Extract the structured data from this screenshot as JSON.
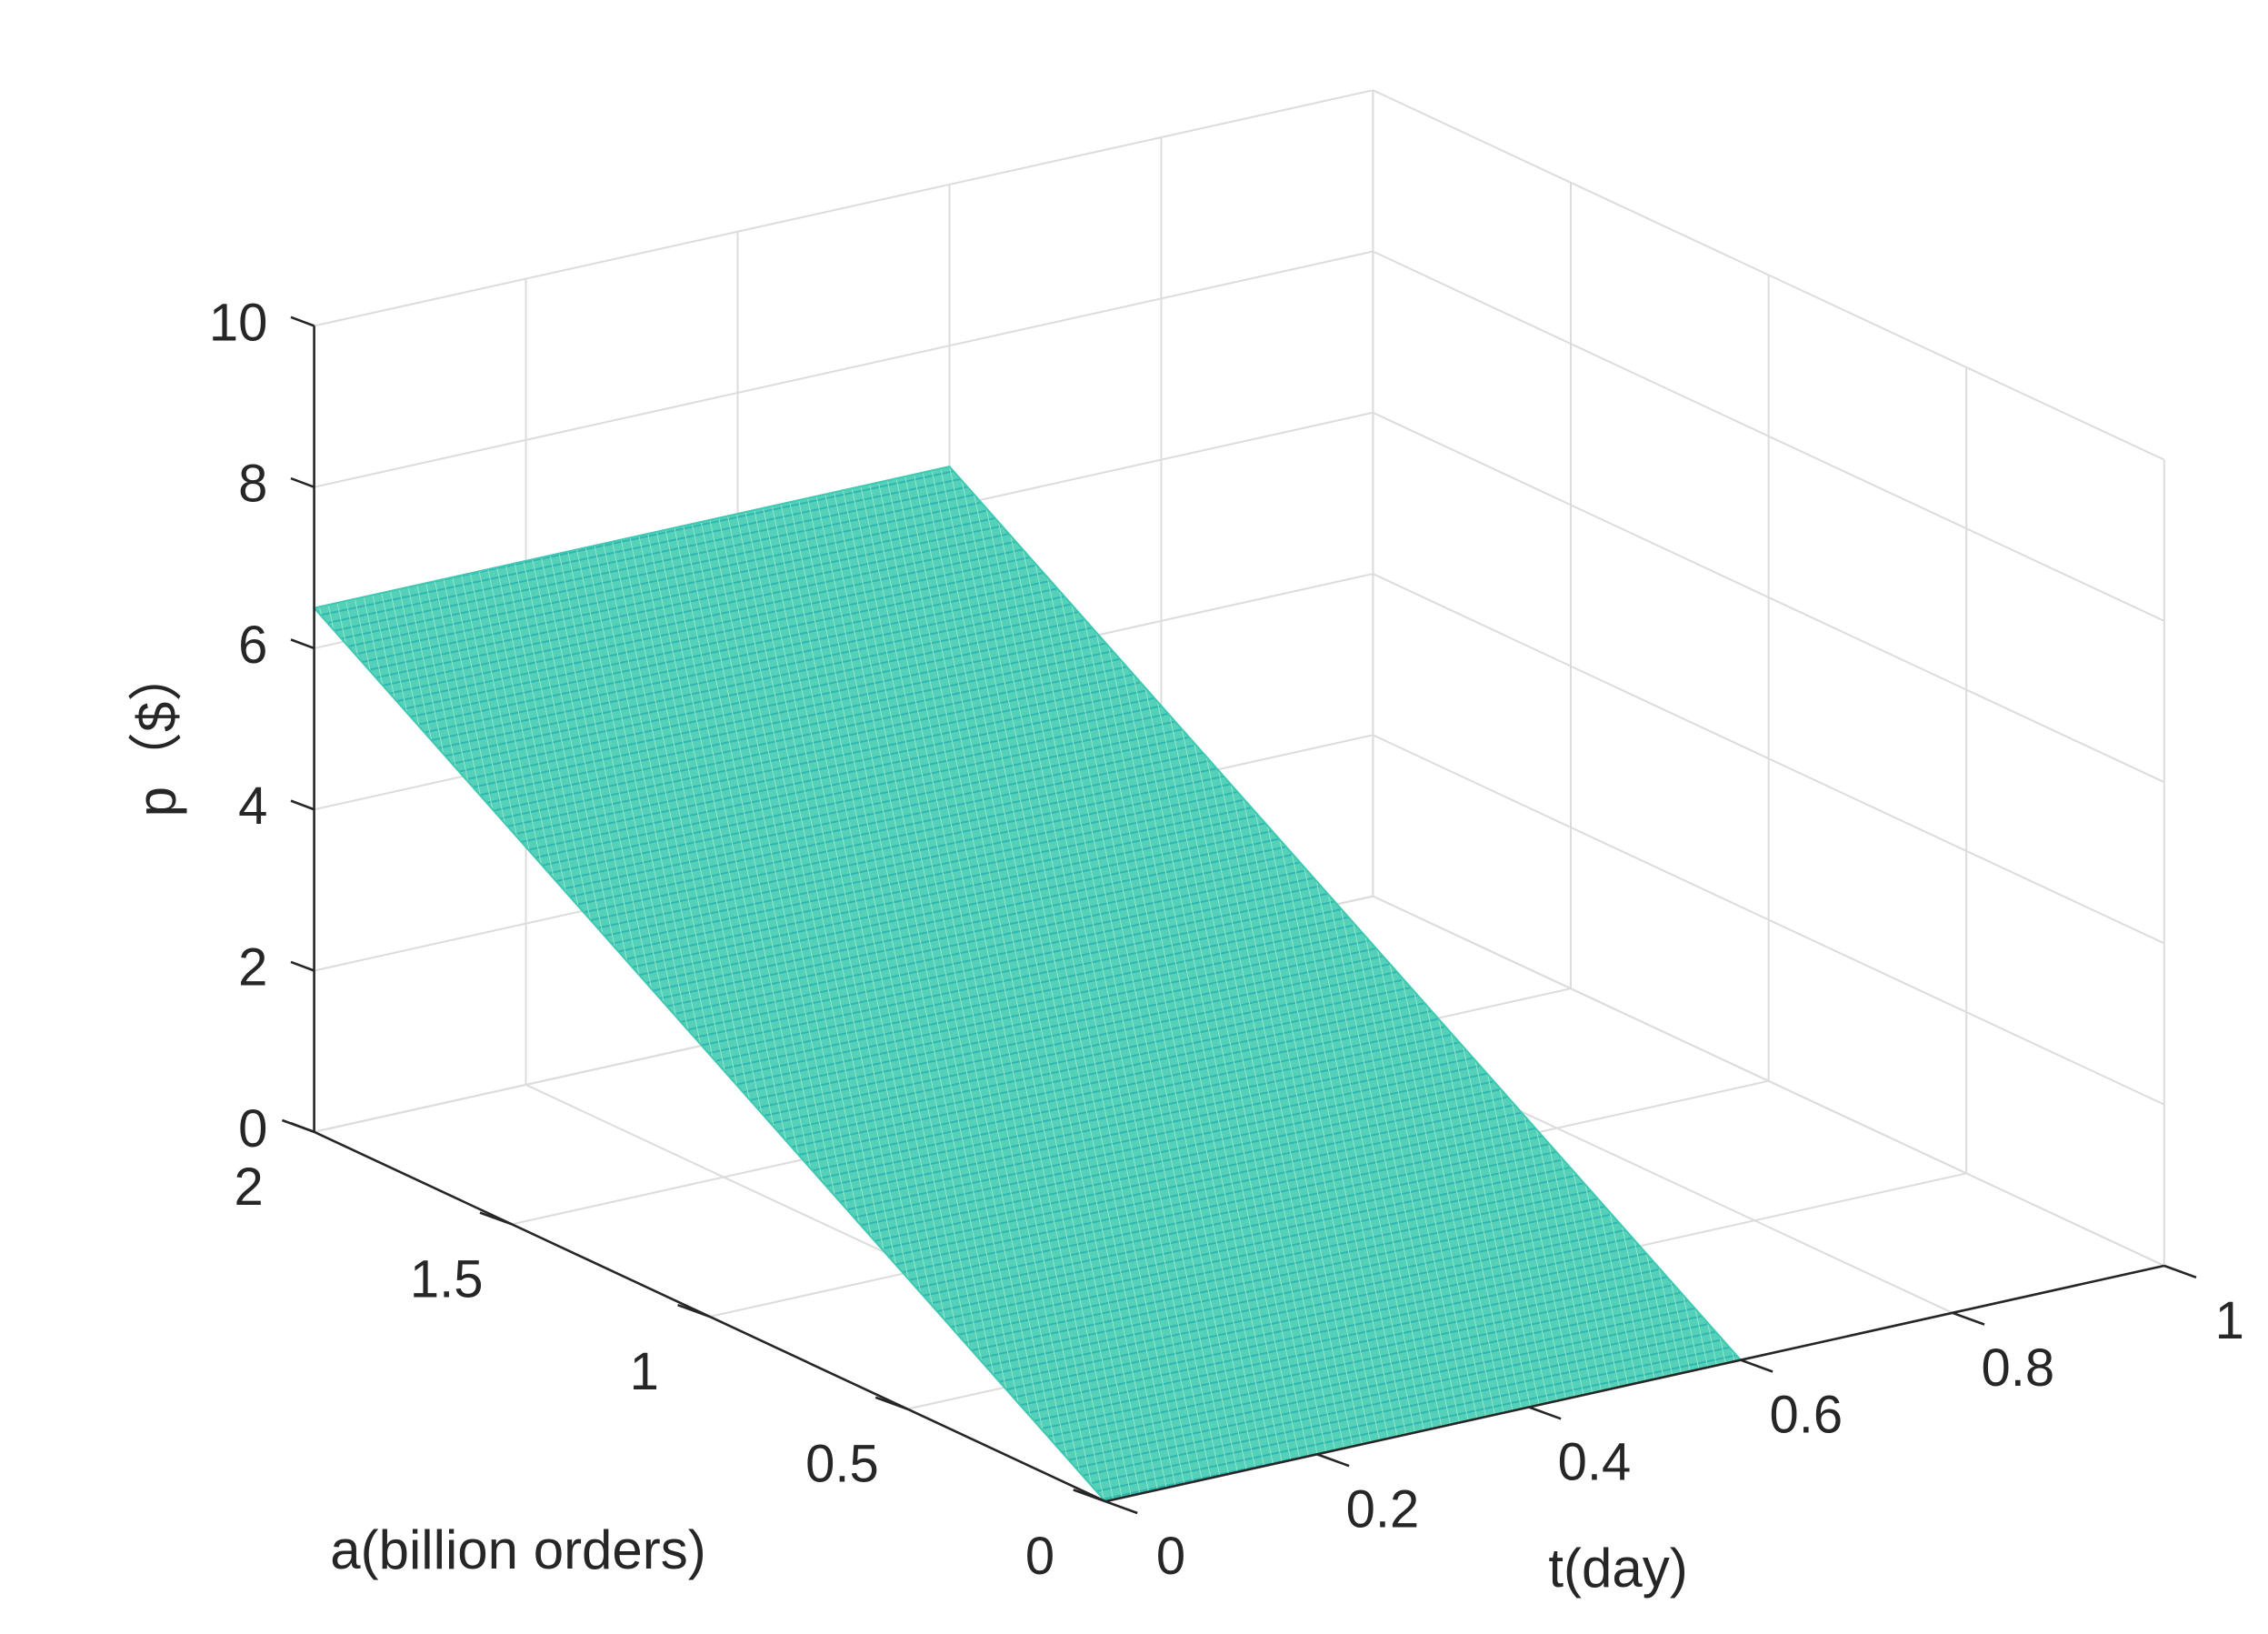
{
  "chart_data": {
    "type": "surface",
    "title": "",
    "xlabel": "t(day)",
    "ylabel": "a(billion orders)",
    "zlabel": "p（$）",
    "xlim": [
      0,
      1
    ],
    "ylim": [
      0,
      2
    ],
    "zlim": [
      0,
      10
    ],
    "xticks": [
      0,
      0.2,
      0.4,
      0.6,
      0.8,
      1
    ],
    "xtick_labels": [
      "0",
      "0.2",
      "0.4",
      "0.6",
      "0.8",
      "1"
    ],
    "yticks": [
      0,
      0.5,
      1,
      1.5,
      2
    ],
    "ytick_labels": [
      "0",
      "0.5",
      "1",
      "1.5",
      "2"
    ],
    "zticks": [
      0,
      2,
      4,
      6,
      8,
      10
    ],
    "ztick_labels": [
      "0",
      "2",
      "4",
      "6",
      "8",
      "10"
    ],
    "grid": true,
    "surface_color": "#3ec9b0",
    "surface": {
      "x": [
        0,
        0.6
      ],
      "y": [
        0,
        2
      ],
      "z": [
        [
          0,
          0
        ],
        [
          6.5,
          6.5
        ]
      ]
    }
  }
}
